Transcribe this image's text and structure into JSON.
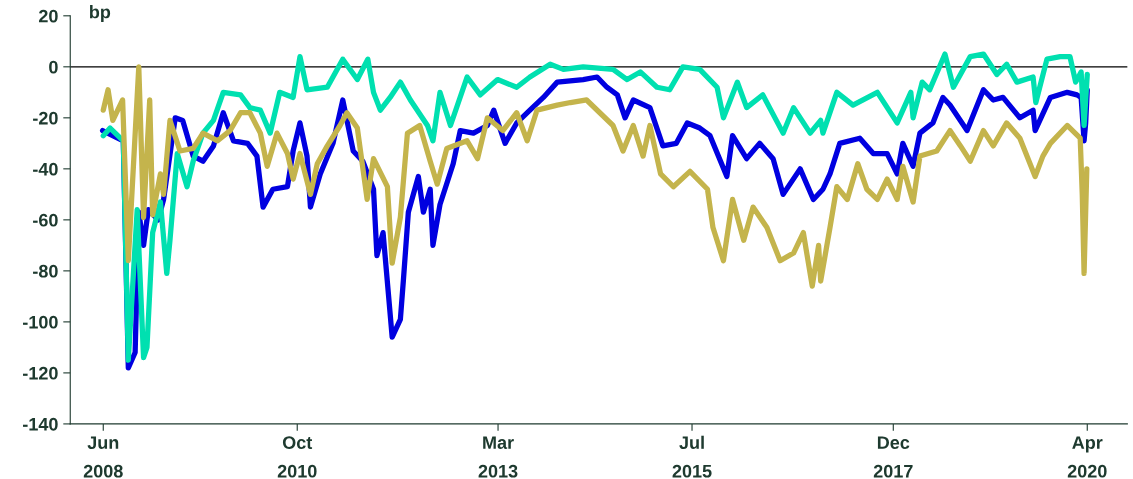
{
  "chart_data": {
    "type": "line",
    "ylabel": "bp",
    "ylim": [
      -140,
      20
    ],
    "yticks": [
      -140,
      -120,
      -100,
      -80,
      -60,
      -40,
      -20,
      0,
      20
    ],
    "xlim": [
      "2008-01-08",
      "2020-09-24"
    ],
    "xticks": [
      {
        "value": "2008-06-01",
        "label": "Jun\n2008"
      },
      {
        "value": "2010-10-01",
        "label": "Oct\n2010"
      },
      {
        "value": "2013-03-01",
        "label": "Mar\n2013"
      },
      {
        "value": "2015-07-01",
        "label": "Jul\n2015"
      },
      {
        "value": "2017-12-01",
        "label": "Dec\n2017"
      },
      {
        "value": "2020-04-01",
        "label": "Apr\n2020"
      }
    ],
    "grid": false,
    "legend": false,
    "marker": "none",
    "line_style": "solid",
    "ref_lines": [
      {
        "axis": "y",
        "value": 0,
        "color": "#000000"
      }
    ],
    "series": [
      {
        "color": "#0000e0",
        "x": [
          "2008-05-29",
          "2008-08-28",
          "2008-09-19",
          "2008-10-19",
          "2008-11-04",
          "2008-11-25",
          "2008-12-16",
          "2009-01-28",
          "2009-02-21",
          "2009-04-13",
          "2009-05-16",
          "2009-07-01",
          "2009-08-13",
          "2009-09-28",
          "2009-11-10",
          "2009-12-25",
          "2010-02-25",
          "2010-04-07",
          "2010-05-04",
          "2010-06-16",
          "2010-08-19",
          "2010-09-13",
          "2010-10-13",
          "2010-11-13",
          "2010-11-28",
          "2011-01-10",
          "2011-03-07",
          "2011-04-19",
          "2011-06-04",
          "2011-07-16",
          "2011-09-01",
          "2011-09-16",
          "2011-10-13",
          "2011-11-22",
          "2011-12-28",
          "2012-01-10",
          "2012-02-01",
          "2012-03-16",
          "2012-04-07",
          "2012-05-07",
          "2012-05-19",
          "2012-06-19",
          "2012-08-16",
          "2012-09-16",
          "2012-11-13",
          "2013-01-13",
          "2013-02-10",
          "2013-04-01",
          "2013-05-22",
          "2013-07-19",
          "2013-09-16",
          "2013-11-16",
          "2014-03-10",
          "2014-05-10",
          "2014-06-22",
          "2014-08-07",
          "2014-09-10",
          "2014-10-16",
          "2014-12-28",
          "2015-02-23",
          "2015-04-23",
          "2015-06-10",
          "2015-08-04",
          "2015-09-18",
          "2015-12-01",
          "2015-12-26",
          "2016-02-26",
          "2016-04-23",
          "2016-06-21",
          "2016-08-04",
          "2016-10-18",
          "2016-12-15",
          "2017-01-26",
          "2017-02-26",
          "2017-04-10",
          "2017-07-07",
          "2017-09-04",
          "2017-11-04",
          "2017-12-18",
          "2018-01-12",
          "2018-02-26",
          "2018-03-28",
          "2018-05-24",
          "2018-07-07",
          "2018-08-07",
          "2018-10-21",
          "2019-01-01",
          "2019-02-13",
          "2019-03-28",
          "2019-06-10",
          "2019-08-07",
          "2019-08-16",
          "2019-10-22",
          "2020-01-04",
          "2020-02-16",
          "2020-03-05",
          "2020-03-18",
          "2020-03-25",
          "2020-04-01"
        ],
        "values": [
          -25,
          -29,
          -118,
          -112,
          -57,
          -70,
          -56,
          -60,
          -52,
          -20,
          -21,
          -35,
          -37,
          -31,
          -18,
          -29,
          -30,
          -35,
          -55,
          -48,
          -47,
          -33,
          -22,
          -35,
          -55,
          -42,
          -30,
          -13,
          -33,
          -37,
          -48,
          -74,
          -65,
          -106,
          -99,
          -84,
          -57,
          -43,
          -57,
          -48,
          -70,
          -54,
          -38,
          -25,
          -26,
          -23,
          -17,
          -30,
          -22,
          -17,
          -12,
          -6,
          -5,
          -4,
          -8,
          -11,
          -20,
          -13,
          -16,
          -31,
          -30,
          -22,
          -24,
          -27,
          -43,
          -27,
          -36,
          -30,
          -36,
          -50,
          -40,
          -52,
          -48,
          -42,
          -30,
          -28,
          -34,
          -34,
          -42,
          -30,
          -39,
          -26,
          -22,
          -12,
          -15,
          -25,
          -9,
          -13,
          -12,
          -20,
          -17,
          -25,
          -12,
          -10,
          -11,
          -12,
          -29,
          -22,
          -9
        ]
      },
      {
        "color": "#00e0b0",
        "x": [
          "2008-06-01",
          "2008-07-01",
          "2008-08-28",
          "2008-09-19",
          "2008-10-28",
          "2008-11-25",
          "2008-12-10",
          "2009-01-04",
          "2009-02-07",
          "2009-03-07",
          "2009-03-21",
          "2009-04-22",
          "2009-06-04",
          "2009-07-01",
          "2009-08-13",
          "2009-09-28",
          "2009-11-10",
          "2010-01-25",
          "2010-03-07",
          "2010-04-22",
          "2010-06-04",
          "2010-07-16",
          "2010-09-13",
          "2010-10-13",
          "2010-11-13",
          "2011-02-10",
          "2011-04-19",
          "2011-06-22",
          "2011-08-07",
          "2011-09-01",
          "2011-10-01",
          "2011-11-13",
          "2011-12-28",
          "2012-02-10",
          "2012-04-25",
          "2012-05-19",
          "2012-06-19",
          "2012-08-04",
          "2012-10-16",
          "2012-12-13",
          "2013-02-27",
          "2013-05-22",
          "2013-07-19",
          "2013-10-16",
          "2013-12-13",
          "2014-03-10",
          "2014-07-19",
          "2014-09-19",
          "2014-11-16",
          "2015-01-28",
          "2015-03-25",
          "2015-05-22",
          "2015-08-04",
          "2015-10-19",
          "2015-11-16",
          "2016-01-16",
          "2016-02-26",
          "2016-05-07",
          "2016-08-04",
          "2016-09-19",
          "2016-12-01",
          "2017-01-16",
          "2017-01-26",
          "2017-03-28",
          "2017-06-07",
          "2017-09-22",
          "2017-12-18",
          "2018-02-16",
          "2018-02-26",
          "2018-04-07",
          "2018-05-10",
          "2018-07-16",
          "2018-08-22",
          "2018-11-04",
          "2019-01-01",
          "2019-03-01",
          "2019-04-13",
          "2019-05-28",
          "2019-08-07",
          "2019-08-19",
          "2019-10-07",
          "2019-12-04",
          "2020-01-16",
          "2020-02-10",
          "2020-03-05",
          "2020-03-18",
          "2020-04-01"
        ],
        "values": [
          -27,
          -24,
          -29,
          -115,
          -56,
          -114,
          -110,
          -65,
          -53,
          -81,
          -68,
          -34,
          -47,
          -37,
          -26,
          -21,
          -10,
          -11,
          -16,
          -17,
          -26,
          -10,
          -12,
          4,
          -9,
          -8,
          3,
          -5,
          3,
          -10,
          -17,
          -12,
          -6,
          -13,
          -23,
          -29,
          -10,
          -23,
          -4,
          -11,
          -5,
          -8,
          -4,
          1,
          -1,
          0,
          -1,
          -5,
          -2,
          -8,
          -9,
          0,
          -1,
          -8,
          -20,
          -6,
          -16,
          -11,
          -26,
          -16,
          -26,
          -21,
          -26,
          -10,
          -15,
          -10,
          -22,
          -10,
          -20,
          -6,
          -9,
          5,
          -8,
          4,
          5,
          -3,
          1,
          -6,
          -4,
          -14,
          3,
          4,
          4,
          -6,
          -2,
          -23,
          -3
        ]
      },
      {
        "color": "#c4b44c",
        "x": [
          "2008-06-01",
          "2008-06-22",
          "2008-07-13",
          "2008-08-25",
          "2008-09-19",
          "2008-11-04",
          "2008-11-25",
          "2008-12-22",
          "2009-01-04",
          "2009-02-07",
          "2009-02-21",
          "2009-03-21",
          "2009-05-04",
          "2009-07-01",
          "2009-08-13",
          "2009-10-16",
          "2009-12-10",
          "2010-01-25",
          "2010-03-07",
          "2010-04-22",
          "2010-05-22",
          "2010-07-04",
          "2010-08-19",
          "2010-09-13",
          "2010-10-13",
          "2010-11-28",
          "2010-12-28",
          "2011-02-10",
          "2011-04-07",
          "2011-05-07",
          "2011-06-22",
          "2011-08-04",
          "2011-09-01",
          "2011-11-01",
          "2011-11-22",
          "2011-12-28",
          "2012-01-28",
          "2012-03-22",
          "2012-05-07",
          "2012-06-07",
          "2012-07-19",
          "2012-10-16",
          "2012-12-01",
          "2013-01-13",
          "2013-03-22",
          "2013-05-22",
          "2013-07-07",
          "2013-08-19",
          "2013-11-16",
          "2014-01-13",
          "2014-03-25",
          "2014-05-22",
          "2014-07-19",
          "2014-09-01",
          "2014-10-16",
          "2014-11-28",
          "2014-12-28",
          "2015-02-13",
          "2015-04-10",
          "2015-06-22",
          "2015-09-07",
          "2015-10-01",
          "2015-11-16",
          "2015-12-26",
          "2016-02-13",
          "2016-03-25",
          "2016-05-25",
          "2016-07-22",
          "2016-09-19",
          "2016-11-01",
          "2016-12-10",
          "2017-01-07",
          "2017-01-16",
          "2017-02-26",
          "2017-03-28",
          "2017-05-13",
          "2017-06-28",
          "2017-08-07",
          "2017-09-22",
          "2017-11-04",
          "2017-12-18",
          "2018-01-12",
          "2018-02-26",
          "2018-03-28",
          "2018-06-10",
          "2018-08-07",
          "2018-09-22",
          "2018-11-04",
          "2019-01-01",
          "2019-02-13",
          "2019-04-13",
          "2019-06-10",
          "2019-08-16",
          "2019-09-19",
          "2019-10-22",
          "2020-01-04",
          "2020-03-01",
          "2020-03-10",
          "2020-03-18",
          "2020-03-25",
          "2020-03-30"
        ],
        "values": [
          -17,
          -9,
          -21,
          -13,
          -76,
          0,
          -59,
          -13,
          -58,
          -42,
          -50,
          -21,
          -33,
          -32,
          -26,
          -29,
          -25,
          -18,
          -18,
          -26,
          -39,
          -26,
          -34,
          -44,
          -34,
          -50,
          -38,
          -31,
          -23,
          -18,
          -24,
          -52,
          -36,
          -47,
          -77,
          -59,
          -26,
          -23,
          -37,
          -46,
          -32,
          -29,
          -36,
          -20,
          -25,
          -18,
          -29,
          -17,
          -15,
          -14,
          -13,
          -18,
          -23,
          -33,
          -23,
          -35,
          -23,
          -42,
          -47,
          -41,
          -48,
          -63,
          -76,
          -52,
          -68,
          -55,
          -63,
          -76,
          -73,
          -65,
          -86,
          -70,
          -84,
          -63,
          -47,
          -52,
          -38,
          -48,
          -52,
          -44,
          -52,
          -39,
          -53,
          -35,
          -33,
          -25,
          -31,
          -37,
          -25,
          -31,
          -22,
          -28,
          -43,
          -35,
          -30,
          -23,
          -28,
          -50,
          -81,
          -57,
          -40
        ]
      }
    ]
  }
}
